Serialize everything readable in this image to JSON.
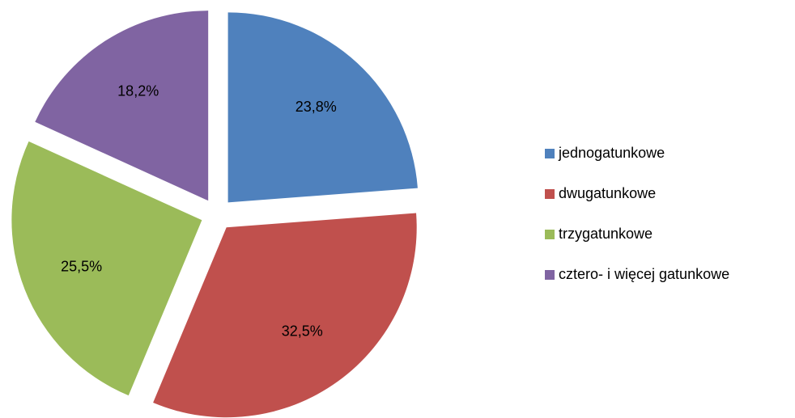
{
  "chart_data": {
    "type": "pie",
    "categories": [
      "jednogatunkowe",
      "dwugatunkowe",
      "trzygatunkowe",
      "cztero- i więcej gatunkowe"
    ],
    "values": [
      23.8,
      32.5,
      25.5,
      18.2
    ],
    "value_labels": [
      "23,8%",
      "32,5%",
      "25,5%",
      "18,2%"
    ],
    "colors": [
      "#4f81bd",
      "#c0504d",
      "#9bbb59",
      "#8064a2"
    ],
    "legend": "right"
  }
}
